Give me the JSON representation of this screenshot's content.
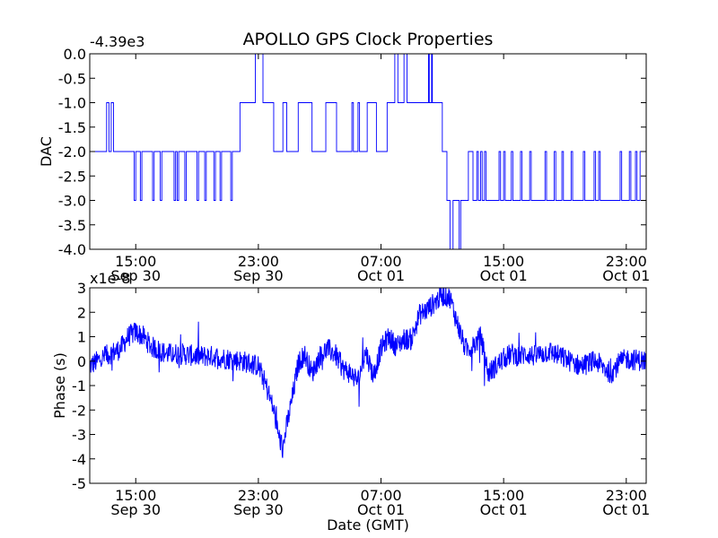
{
  "figure_title": "APOLLO GPS Clock Properties",
  "chart_data": [
    {
      "type": "line",
      "title": "APOLLO GPS Clock Properties",
      "ylabel": "DAC",
      "xlabel": "",
      "offset_text": "-4.39e3",
      "ylim": [
        -4.0,
        0.0
      ],
      "yticks": [
        "0.0",
        "-0.5",
        "-1.0",
        "-1.5",
        "-2.0",
        "-2.5",
        "-3.0",
        "-3.5",
        "-4.0"
      ],
      "xticks": [
        {
          "time": "15:00",
          "date": "Sep 30"
        },
        {
          "time": "23:00",
          "date": "Sep 30"
        },
        {
          "time": "07:00",
          "date": "Oct 01"
        },
        {
          "time": "15:00",
          "date": "Oct 01"
        },
        {
          "time": "23:00",
          "date": "Oct 01"
        }
      ],
      "x_range_hours": [
        12.0,
        48.3
      ],
      "series_color": "#0000ff",
      "series": [
        {
          "name": "DAC",
          "t": [
            12.0,
            13.0,
            13.1,
            13.25,
            13.4,
            13.55,
            13.7,
            14.9,
            15.0,
            15.3,
            15.4,
            16.1,
            16.2,
            16.6,
            16.7,
            17.5,
            17.6,
            17.7,
            17.8,
            18.2,
            18.3,
            19.0,
            19.1,
            19.5,
            19.6,
            20.1,
            20.2,
            20.5,
            20.6,
            21.2,
            21.3,
            21.7,
            21.8,
            22.7,
            22.8,
            23.2,
            23.3,
            23.9,
            24.0,
            24.5,
            24.6,
            24.75,
            24.85,
            25.5,
            25.6,
            26.4,
            26.5,
            27.3,
            27.4,
            28.0,
            28.1,
            29.1,
            29.2,
            29.5,
            29.6,
            30.1,
            30.2,
            30.6,
            30.7,
            31.4,
            31.5,
            31.8,
            31.9,
            32.0,
            32.1,
            32.4,
            32.5,
            32.6,
            32.7,
            33.0,
            33.1,
            34.0,
            34.1,
            34.15,
            34.3,
            34.35,
            34.5,
            35.0,
            35.1,
            35.3,
            35.5,
            35.6,
            35.7,
            36.1,
            36.2,
            36.6,
            36.7,
            37.0,
            37.1,
            37.25,
            37.35,
            37.5,
            37.6,
            37.75,
            37.85,
            38.7,
            38.8,
            39.0,
            39.1,
            39.5,
            39.6,
            40.1,
            40.2,
            40.7,
            40.8,
            41.7,
            41.8,
            42.3,
            42.4,
            42.8,
            42.9,
            43.4,
            43.5,
            44.2,
            44.3,
            44.9,
            45.0,
            45.2,
            45.3,
            46.6,
            46.7,
            47.2,
            47.3,
            47.6,
            47.7,
            47.9,
            48.0,
            48.3
          ],
          "v": [
            -2.0,
            -2.0,
            -1.0,
            -2.0,
            -1.0,
            -2.0,
            -2.0,
            -3.0,
            -2.0,
            -3.0,
            -2.0,
            -3.0,
            -2.0,
            -3.0,
            -2.0,
            -3.0,
            -2.0,
            -3.0,
            -2.0,
            -3.0,
            -2.0,
            -3.0,
            -2.0,
            -3.0,
            -2.0,
            -3.0,
            -2.0,
            -3.0,
            -2.0,
            -3.0,
            -2.0,
            -2.0,
            -1.0,
            -1.0,
            0.0,
            0.0,
            -1.0,
            -1.0,
            -2.0,
            -2.0,
            -1.0,
            -1.0,
            -2.0,
            -2.0,
            -1.0,
            -1.0,
            -2.0,
            -2.0,
            -1.0,
            -1.0,
            -2.0,
            -1.0,
            -2.0,
            -1.0,
            -2.0,
            -1.0,
            -1.0,
            -1.0,
            -2.0,
            -1.0,
            -1.0,
            -1.0,
            0.0,
            0.0,
            -1.0,
            -1.0,
            0.0,
            0.0,
            -1.0,
            -1.0,
            -1.0,
            -1.0,
            0.0,
            -1.0,
            0.0,
            -1.0,
            -1.0,
            -2.0,
            -2.0,
            -3.0,
            -4.0,
            -4.0,
            -3.0,
            -4.0,
            -3.0,
            -3.0,
            -2.0,
            -3.0,
            -3.0,
            -2.0,
            -3.0,
            -2.0,
            -3.0,
            -2.0,
            -3.0,
            -2.0,
            -3.0,
            -2.0,
            -3.0,
            -2.0,
            -3.0,
            -2.0,
            -3.0,
            -2.0,
            -3.0,
            -2.0,
            -3.0,
            -2.0,
            -3.0,
            -2.0,
            -3.0,
            -2.0,
            -3.0,
            -2.0,
            -3.0,
            -2.0,
            -3.0,
            -2.0,
            -3.0,
            -2.0,
            -3.0,
            -2.0,
            -3.0,
            -2.0,
            -3.0,
            -2.0,
            -2.0,
            -2.0
          ]
        }
      ]
    },
    {
      "type": "line",
      "title": "",
      "ylabel": "Phase (s)",
      "xlabel": "Date (GMT)",
      "offset_text": "x1e-8",
      "ylim": [
        -5,
        3
      ],
      "yticks": [
        "3",
        "2",
        "1",
        "0",
        "-1",
        "-2",
        "-3",
        "-4",
        "-5"
      ],
      "xticks": [
        {
          "time": "15:00",
          "date": "Sep 30"
        },
        {
          "time": "23:00",
          "date": "Sep 30"
        },
        {
          "time": "07:00",
          "date": "Oct 01"
        },
        {
          "time": "15:00",
          "date": "Oct 01"
        },
        {
          "time": "23:00",
          "date": "Oct 01"
        }
      ],
      "x_range_hours": [
        12.0,
        48.3
      ],
      "series_color": "#0000ff",
      "series": [
        {
          "name": "Phase",
          "t": [
            12.0,
            13.0,
            14.0,
            14.5,
            15.0,
            15.5,
            16.0,
            17.0,
            18.0,
            19.0,
            20.0,
            21.0,
            22.0,
            23.0,
            23.5,
            24.0,
            24.3,
            24.6,
            24.8,
            25.0,
            25.3,
            25.6,
            26.0,
            26.5,
            27.0,
            27.5,
            28.0,
            28.5,
            29.0,
            29.5,
            30.0,
            30.5,
            31.0,
            31.5,
            32.0,
            32.5,
            33.0,
            33.5,
            34.0,
            34.5,
            35.0,
            35.5,
            36.0,
            36.5,
            37.0,
            37.5,
            38.0,
            38.5,
            39.0,
            39.5,
            40.0,
            40.5,
            41.0,
            42.0,
            43.0,
            44.0,
            45.0,
            46.0,
            46.5,
            47.0,
            48.3
          ],
          "v": [
            -0.2,
            0.2,
            0.5,
            1.0,
            1.2,
            1.0,
            0.6,
            0.3,
            0.3,
            0.2,
            0.2,
            0.1,
            0.0,
            -0.2,
            -1.0,
            -2.0,
            -3.0,
            -3.6,
            -2.8,
            -2.2,
            -1.2,
            -0.1,
            0.3,
            -0.5,
            0.2,
            0.5,
            0.3,
            -0.3,
            -0.5,
            -0.8,
            0.4,
            -0.6,
            0.5,
            1.0,
            0.6,
            0.9,
            0.9,
            1.9,
            2.1,
            2.4,
            2.7,
            2.6,
            1.5,
            0.5,
            0.6,
            1.0,
            -0.5,
            -0.2,
            0.1,
            0.3,
            0.2,
            0.3,
            0.2,
            0.4,
            0.1,
            -0.2,
            0.0,
            -0.5,
            -0.1,
            0.1,
            0.0
          ],
          "noise_amplitude": 0.45
        }
      ]
    }
  ]
}
